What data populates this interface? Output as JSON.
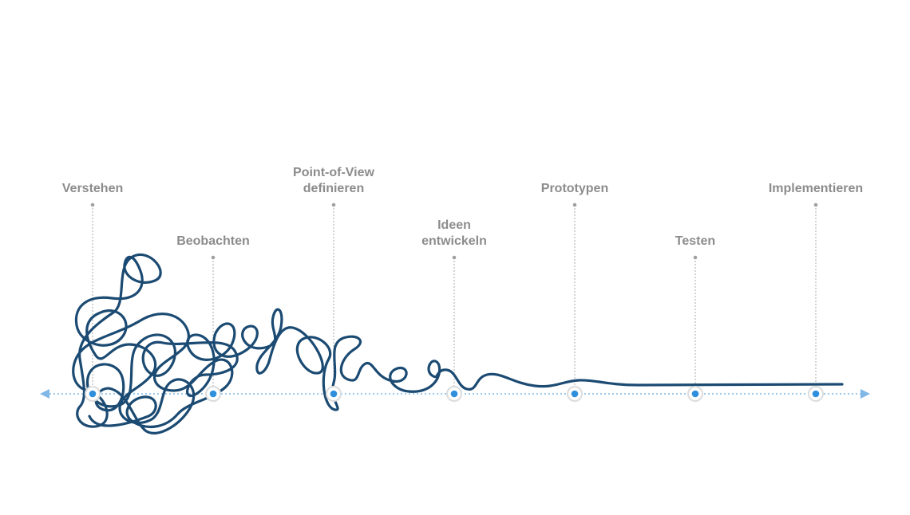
{
  "stages": [
    {
      "label": [
        "Verstehen"
      ]
    },
    {
      "label": [
        "Beobachten"
      ]
    },
    {
      "label": [
        "Point-of-View",
        "definieren"
      ]
    },
    {
      "label": [
        "Ideen",
        "entwickeln"
      ]
    },
    {
      "label": [
        "Prototypen"
      ]
    },
    {
      "label": [
        "Testen"
      ]
    },
    {
      "label": [
        "Implementieren"
      ]
    }
  ]
}
